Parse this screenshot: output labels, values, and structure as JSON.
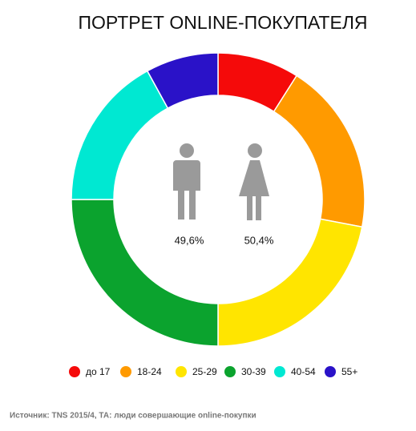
{
  "chart_data": {
    "type": "pie",
    "title": "ПОРТРЕТ ONLINE-ПОКУПАТЕЛЯ",
    "categories": [
      "до 17",
      "18-24",
      "25-29",
      "30-39",
      "40-54",
      "55+"
    ],
    "values": [
      9,
      19,
      22,
      25,
      17,
      8
    ],
    "colors": [
      "#f50a0a",
      "#ff9a00",
      "#ffe500",
      "#0ba32e",
      "#00e8d2",
      "#2a12c8"
    ],
    "annotations": [
      "49,6%",
      "50,4%"
    ],
    "source": "Источник: TNS 2015/4, ТА: люди совершающие online-покупки"
  }
}
